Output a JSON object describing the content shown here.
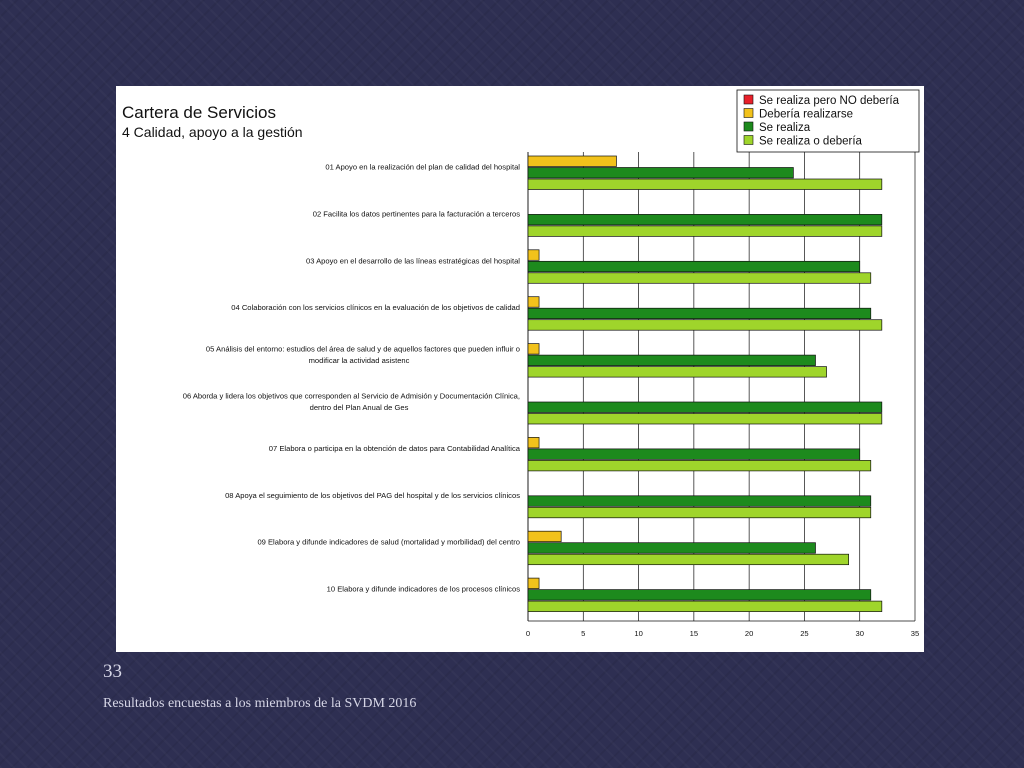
{
  "slide": {
    "number": "33",
    "footer": "Resultados encuestas a los miembros de la SVDM 2016"
  },
  "chart_data": {
    "type": "bar",
    "orientation": "horizontal",
    "title": "Cartera de Servicios",
    "subtitle": "4 Calidad, apoyo a la gestión",
    "legend_position": "top-right",
    "grid": true,
    "xlim": [
      0,
      35
    ],
    "xticks": [
      0,
      5,
      10,
      15,
      20,
      25,
      30,
      35
    ],
    "categories": [
      [
        "01 Apoyo en la realización del plan de calidad del hospital"
      ],
      [
        "02 Facilita los datos pertinentes para la facturación a terceros"
      ],
      [
        "03 Apoyo en el desarrollo de las líneas estratégicas del hospital"
      ],
      [
        "04 Colaboración con los servicios clínicos en la evaluación de los objetivos de calidad"
      ],
      [
        "05 Análisis del entorno: estudios del área de salud y de aquellos factores que pueden influir o",
        "modificar la actividad asistenc"
      ],
      [
        "06 Aborda y lidera los objetivos que corresponden al Servicio de Admisión y Documentación Clínica,",
        "dentro del Plan Anual de Ges"
      ],
      [
        "07 Elabora o participa en la obtención de datos para Contabilidad Analítica"
      ],
      [
        "08 Apoya el seguimiento de los objetivos del PAG del hospital y de los servicios clínicos"
      ],
      [
        "09 Elabora y difunde indicadores de salud (mortalidad y morbilidad) del centro"
      ],
      [
        "10 Elabora y difunde indicadores de los procesos clínicos"
      ]
    ],
    "series": [
      {
        "name": "Se realiza pero NO debería",
        "color": "#e8202a",
        "values": [
          0,
          0,
          0,
          0,
          0,
          0,
          0,
          0,
          0,
          0
        ]
      },
      {
        "name": "Debería realizarse",
        "color": "#f2c21b",
        "values": [
          8,
          0,
          1,
          1,
          1,
          0,
          1,
          0,
          3,
          1
        ]
      },
      {
        "name": "Se realiza",
        "color": "#1d8a1d",
        "values": [
          24,
          32,
          30,
          31,
          26,
          32,
          30,
          31,
          26,
          31
        ]
      },
      {
        "name": "Se realiza o debería",
        "color": "#9fd52b",
        "values": [
          32,
          32,
          31,
          32,
          27,
          32,
          31,
          31,
          29,
          32
        ]
      }
    ]
  }
}
